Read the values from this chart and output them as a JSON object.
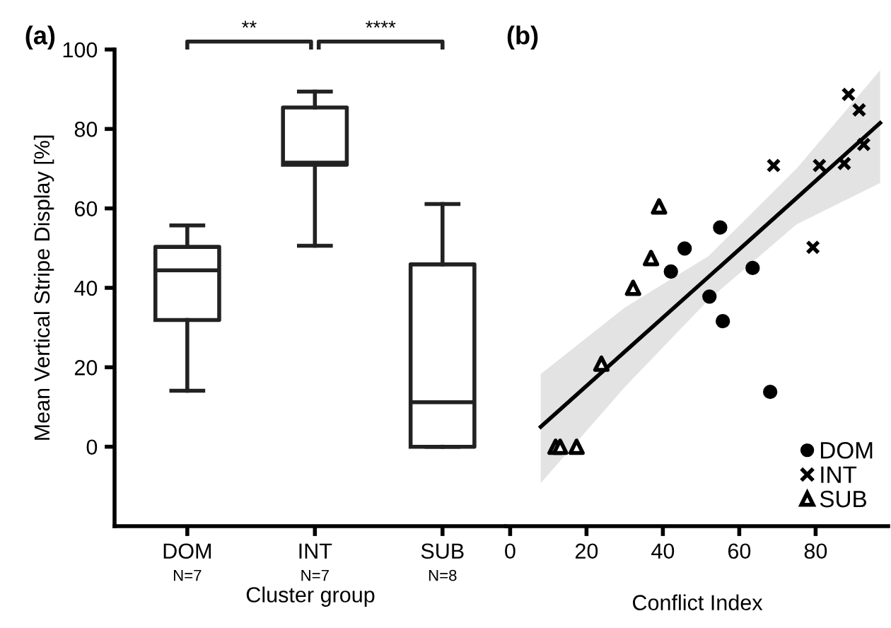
{
  "chart_data": [
    {
      "type": "box",
      "title": "(a)",
      "xlabel": "Cluster group",
      "ylabel": "Mean Vertical Stripe Display [%]",
      "categories": [
        "DOM",
        "INT",
        "SUB"
      ],
      "boxes": [
        {
          "low": 14.1,
          "q1": 31.9,
          "median": 44.4,
          "q3": 50.3,
          "high": 55.7
        },
        {
          "low": 50.6,
          "q1": 71,
          "median": 71.5,
          "q3": 85.4,
          "high": 89.4
        },
        {
          "low": 0,
          "q1": 0,
          "median": 11.2,
          "q3": 45.9,
          "high": 61.1
        }
      ],
      "ylim": [
        -20,
        100
      ],
      "yticks": [
        0,
        20,
        40,
        60,
        80,
        100
      ],
      "grid": false,
      "annotations": [
        "N=7",
        "N=7",
        "N=8",
        "**",
        "****"
      ]
    },
    {
      "type": "scatter",
      "title": "(b)",
      "xlabel": "Conflict Index",
      "xlim": [
        -1,
        99
      ],
      "xticks": [
        0,
        20,
        40,
        60,
        80
      ],
      "ylim": [
        -20,
        100
      ],
      "yticks": [
        0,
        20,
        40,
        60,
        80,
        100
      ],
      "tick_labels": "x",
      "grid": false,
      "legend": "bottom right",
      "series": [
        {
          "name": "DOM",
          "color": "#000000",
          "marker": "circle",
          "x": [
            55.0,
            45.7,
            42.1,
            63.5,
            52.2,
            55.7,
            68.1
          ],
          "values": [
            55.2,
            49.9,
            44.1,
            45.0,
            37.8,
            31.6,
            13.8
          ]
        },
        {
          "name": "INT",
          "color": "#000000",
          "marker": "cross",
          "x": [
            69.0,
            81.0,
            87.5,
            88.6,
            91.4,
            92.6,
            79.3
          ],
          "values": [
            70.8,
            70.8,
            71.3,
            88.7,
            84.8,
            76.1,
            50.2
          ]
        },
        {
          "name": "SUB",
          "color": "#000000",
          "marker": "triangle",
          "x": [
            39.0,
            36.9,
            32.2,
            23.9,
            11.9,
            13.1,
            17.4
          ],
          "values": [
            60.5,
            47.5,
            40.0,
            20.9,
            0,
            0,
            0
          ]
        },
        {
          "type": "line",
          "color": "#000000",
          "x": [
            8,
            30,
            52,
            75,
            96.9
          ],
          "values": [
            5,
            23.9,
            42.8,
            62.6,
            81.5
          ],
          "lower": [
            -9.2,
            15,
            37,
            56,
            66.4
          ],
          "upper": [
            18.3,
            35,
            48,
            70,
            94.8
          ]
        }
      ]
    }
  ]
}
